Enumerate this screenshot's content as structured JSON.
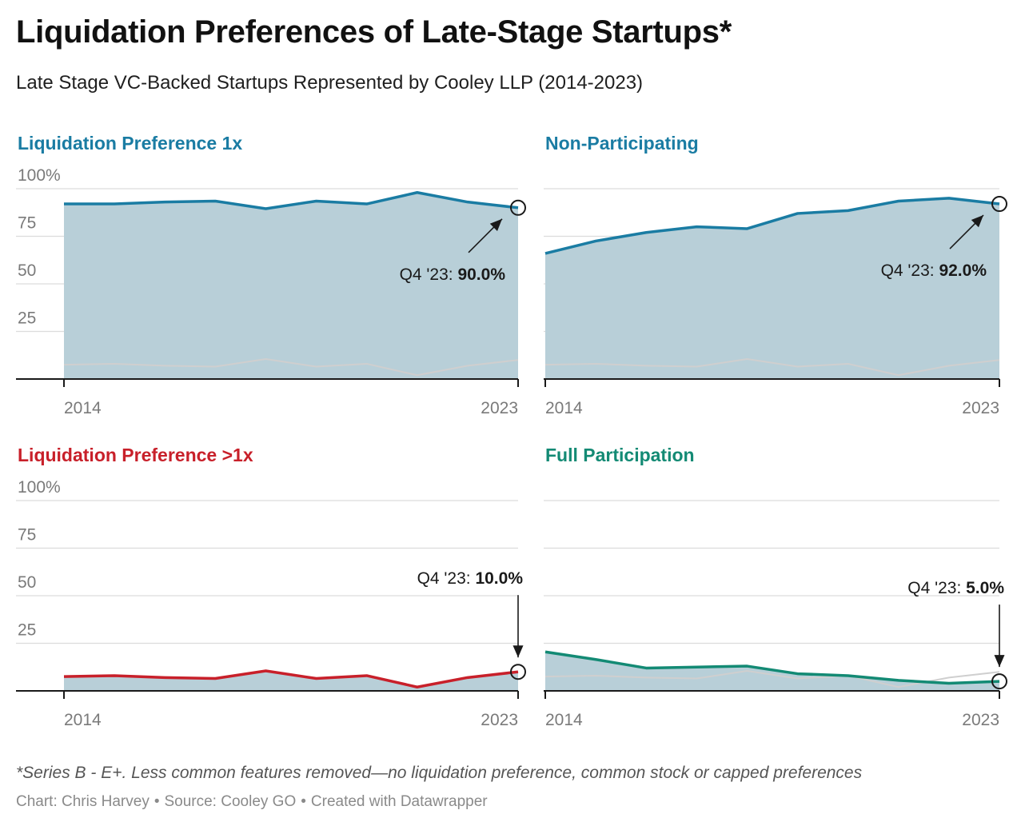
{
  "title": "Liquidation Preferences of Late-Stage Startups*",
  "subtitle": "Late Stage VC-Backed Startups Represented by Cooley LLP (2014-2023)",
  "note": "*Series B - E+. Less common features removed—no liquidation preference, common stock or capped preferences",
  "byline": {
    "chart": "Chart: Chris Harvey",
    "source": "Source: Cooley GO",
    "created": "Created with Datawrapper",
    "separator": "•"
  },
  "colors": {
    "area_fill": "#b8cfd8",
    "gridline": "#dcdcdc",
    "axis": "#1a1a1a",
    "reference_line": "#cfcfcf",
    "annotation_arrow": "#1a1a1a"
  },
  "chart_data": [
    {
      "type": "area",
      "title": "Liquidation Preference 1x",
      "title_color": "#1a7ca3",
      "line_color": "#1a7ca3",
      "x": [
        "2014",
        "2015",
        "2016",
        "2017",
        "2018",
        "2019",
        "2020",
        "2021",
        "2022",
        "2023"
      ],
      "x_tick_labels": [
        "2014",
        "2023"
      ],
      "y": [
        92,
        92,
        93,
        93.5,
        89.5,
        93.5,
        92,
        98,
        93,
        90
      ],
      "reference_series": [
        7.5,
        8,
        7,
        6.5,
        10.5,
        6.5,
        8,
        2,
        7,
        10
      ],
      "ylim": [
        0,
        100
      ],
      "y_ticks": [
        25,
        50,
        75,
        100
      ],
      "y_tick_labels": [
        "25",
        "50",
        "75",
        "100%"
      ],
      "annotation": {
        "label": "Q4 '23: ",
        "value": "90.0%",
        "style": "diagonal"
      }
    },
    {
      "type": "area",
      "title": "Non-Participating",
      "title_color": "#1a7ca3",
      "line_color": "#1a7ca3",
      "x": [
        "2014",
        "2015",
        "2016",
        "2017",
        "2018",
        "2019",
        "2020",
        "2021",
        "2022",
        "2023"
      ],
      "x_tick_labels": [
        "2014",
        "2023"
      ],
      "y": [
        66,
        72.5,
        77,
        80,
        79,
        87,
        88.5,
        93.5,
        95,
        92
      ],
      "reference_series": [
        7.5,
        8,
        7,
        6.5,
        10.5,
        6.5,
        8,
        2,
        7,
        10
      ],
      "ylim": [
        0,
        100
      ],
      "y_ticks": [
        25,
        50,
        75,
        100
      ],
      "y_tick_labels": [],
      "annotation": {
        "label": "Q4 '23: ",
        "value": "92.0%",
        "style": "diagonal"
      }
    },
    {
      "type": "area",
      "title": "Liquidation Preference >1x",
      "title_color": "#c8202a",
      "line_color": "#c8202a",
      "x": [
        "2014",
        "2015",
        "2016",
        "2017",
        "2018",
        "2019",
        "2020",
        "2021",
        "2022",
        "2023"
      ],
      "x_tick_labels": [
        "2014",
        "2023"
      ],
      "y": [
        7.5,
        8,
        7,
        6.5,
        10.5,
        6.5,
        8,
        2,
        7,
        10
      ],
      "reference_series": [],
      "ylim": [
        0,
        100
      ],
      "y_ticks": [
        25,
        50,
        75,
        100
      ],
      "y_tick_labels": [
        "25",
        "50",
        "75",
        "100%"
      ],
      "annotation": {
        "label": "Q4 '23: ",
        "value": "10.0%",
        "style": "vertical"
      }
    },
    {
      "type": "area",
      "title": "Full Participation",
      "title_color": "#138a74",
      "line_color": "#138a74",
      "x": [
        "2014",
        "2015",
        "2016",
        "2017",
        "2018",
        "2019",
        "2020",
        "2021",
        "2022",
        "2023"
      ],
      "x_tick_labels": [
        "2014",
        "2023"
      ],
      "y": [
        20.5,
        16.5,
        12,
        12.5,
        13,
        9,
        8,
        5.5,
        4,
        5
      ],
      "reference_series": [
        7.5,
        8,
        7,
        6.5,
        10.5,
        6.5,
        8,
        2,
        7,
        10
      ],
      "ylim": [
        0,
        100
      ],
      "y_ticks": [
        25,
        50,
        75,
        100
      ],
      "y_tick_labels": [],
      "annotation": {
        "label": "Q4 '23: ",
        "value": "5.0%",
        "style": "vertical"
      }
    }
  ]
}
